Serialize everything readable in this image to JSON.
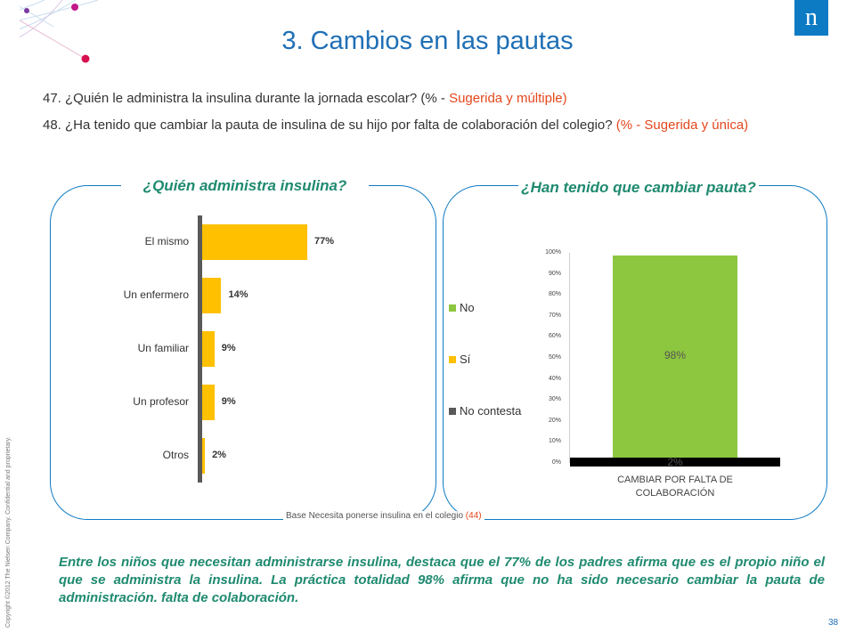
{
  "header": {
    "title": "3. Cambios en las pautas",
    "logo_text": "n"
  },
  "questions": [
    {
      "text": "47. ¿Quién le administra la insulina durante la jornada escolar? (% - ",
      "highlight": "Sugerida y múltiple)"
    },
    {
      "text": "48. ¿Ha tenido que cambiar la pauta de insulina de su hijo por falta de colaboración del colegio? ",
      "highlight": "(% - Sugerida y única)"
    }
  ],
  "chart_data": [
    {
      "type": "bar",
      "orientation": "horizontal",
      "title": "¿Quién administra insulina?",
      "categories": [
        "El mismo",
        "Un enfermero",
        "Un familiar",
        "Un profesor",
        "Otros"
      ],
      "values": [
        77,
        14,
        9,
        9,
        2
      ],
      "value_labels": [
        "77%",
        "14%",
        "9%",
        "9%",
        "2%"
      ],
      "color": "#ffc000"
    },
    {
      "type": "bar",
      "stacked": true,
      "title": "¿Han tenido que cambiar pauta?",
      "categories": [
        "CAMBIAR POR FALTA DE COLABORACIÓN"
      ],
      "series": [
        {
          "name": "No",
          "values": [
            98
          ],
          "label": "98%",
          "color": "#8dc63f"
        },
        {
          "name": "Sí",
          "values": [
            0
          ],
          "label": "",
          "color": "#ffc000"
        },
        {
          "name": "No contesta",
          "values": [
            2
          ],
          "label": "2%",
          "color": "#000000"
        }
      ],
      "ylim": [
        0,
        100
      ],
      "yticks": [
        "100%",
        "90%",
        "80%",
        "70%",
        "60%",
        "50%",
        "40%",
        "30%",
        "20%",
        "10%",
        "0%"
      ],
      "legend_position": "left",
      "legend_colors": [
        "#8dc63f",
        "#ffc000",
        "#595959"
      ]
    }
  ],
  "base_note": {
    "text": "Base Necesita ponerse insulina en el colegio ",
    "highlight": "(44)"
  },
  "summary": "Entre los niños que necesitan administrarse insulina, destaca que el 77% de los padres afirma que es el propio niño el que se administra la insulina. La práctica totalidad 98% afirma que no ha sido necesario cambiar la pauta de administración. falta de colaboración.",
  "footer": {
    "page_number": "38",
    "copyright": "Copyright ©2012 The Nielsen Company. Confidential and proprietary."
  },
  "colors": {
    "accent_blue": "#0d7bc4",
    "title_blue": "#1f6fb5",
    "green_text": "#1f8a70",
    "highlight": "#e4471c"
  }
}
